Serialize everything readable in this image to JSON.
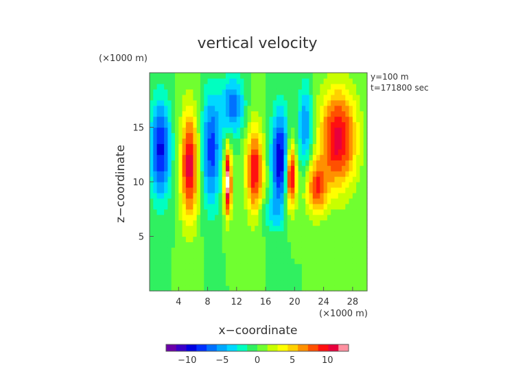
{
  "chart_data": {
    "type": "heatmap",
    "title": "vertical velocity",
    "xlabel": "x−coordinate",
    "ylabel": "z−coordinate",
    "x_unit": "(×1000 m)",
    "y_unit": "(×1000 m)",
    "annotation_lines": [
      "y=100 m",
      "t=171800 sec"
    ],
    "xlim": [
      0,
      30
    ],
    "ylim": [
      0,
      20
    ],
    "x_ticks": [
      4,
      8,
      12,
      16,
      20,
      24,
      28
    ],
    "x_tick_labels": [
      "4",
      "8",
      "12",
      "16",
      "20",
      "24",
      "28"
    ],
    "y_ticks": [
      5,
      10,
      15
    ],
    "y_tick_labels": [
      "5",
      "10",
      "15"
    ],
    "colorbar": {
      "min": -13,
      "max": 13,
      "ticks": [
        -10,
        -5,
        0,
        5,
        10
      ],
      "tick_labels": [
        "−10",
        "−5",
        "0",
        "5",
        "10"
      ],
      "colors": [
        "#6a00a8",
        "#3a00c8",
        "#0000e0",
        "#0030ff",
        "#0070ff",
        "#00a8ff",
        "#00d8ff",
        "#00ffc0",
        "#30f060",
        "#70ff30",
        "#c8ff00",
        "#ffff00",
        "#ffd000",
        "#ff9000",
        "#ff5000",
        "#ff1010",
        "#e8003c",
        "#ff90a0"
      ]
    },
    "background_value": 0,
    "features": [
      {
        "x": 1.5,
        "z": 13,
        "w": -9,
        "sx": 1.4,
        "sz": 4.5
      },
      {
        "x": 5.5,
        "z": 11.5,
        "w": 11,
        "sx": 1.2,
        "sz": 5
      },
      {
        "x": 8.5,
        "z": 13,
        "w": -8,
        "sx": 1.3,
        "sz": 5
      },
      {
        "x": 10.8,
        "z": 10,
        "w": 14,
        "sx": 0.5,
        "sz": 3
      },
      {
        "x": 11.5,
        "z": 17,
        "w": -7,
        "sx": 1.5,
        "sz": 2.5
      },
      {
        "x": 14.5,
        "z": 11,
        "w": 10,
        "sx": 1.2,
        "sz": 4
      },
      {
        "x": 18,
        "z": 12,
        "w": -10,
        "sx": 1.2,
        "sz": 4.5
      },
      {
        "x": 19.5,
        "z": 10.5,
        "w": 12,
        "sx": 0.7,
        "sz": 3
      },
      {
        "x": 26,
        "z": 14,
        "w": 11,
        "sx": 2.5,
        "sz": 4.5
      },
      {
        "x": 23,
        "z": 9.5,
        "w": 8,
        "sx": 1.5,
        "sz": 2.5
      },
      {
        "x": 21.5,
        "z": 15,
        "w": -6,
        "sx": 1,
        "sz": 4
      },
      {
        "x": 16.5,
        "z": 7,
        "w": -3,
        "sx": 1.5,
        "sz": 1.5
      }
    ]
  }
}
